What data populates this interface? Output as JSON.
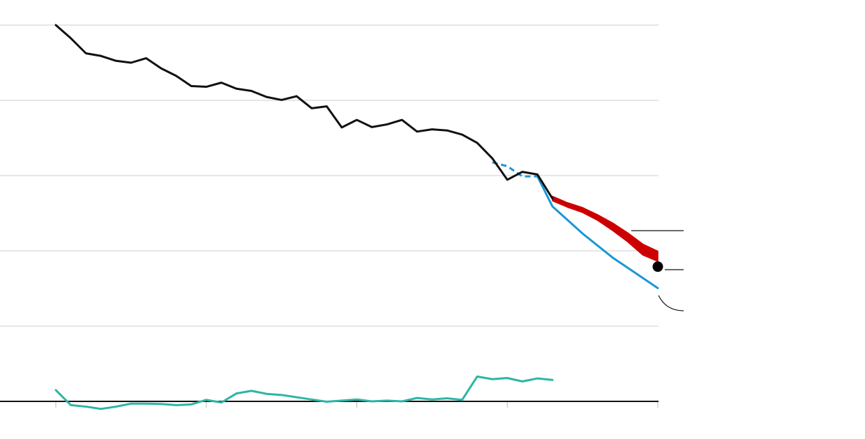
{
  "chart_data": {
    "type": "line",
    "title": "",
    "xlabel": "",
    "ylabel": "",
    "x_range": [
      1980,
      2020
    ],
    "ylim": [
      0,
      100
    ],
    "grid": true,
    "colors": {
      "historical": "#111111",
      "projection_range": "#cc0000",
      "pathway": "#1b96d8",
      "other": "#2bb5a5",
      "marker": "#000000"
    },
    "series": [
      {
        "key": "historical",
        "style": "solid",
        "points": [
          [
            1980,
            100
          ],
          [
            1981,
            96.5
          ],
          [
            1982,
            92.5
          ],
          [
            1983,
            91.8
          ],
          [
            1984,
            90.5
          ],
          [
            1985,
            90
          ],
          [
            1986,
            91.2
          ],
          [
            1987,
            88.5
          ],
          [
            1988,
            86.5
          ],
          [
            1989,
            83.8
          ],
          [
            1990,
            83.6
          ],
          [
            1991,
            84.7
          ],
          [
            1992,
            83.1
          ],
          [
            1993,
            82.5
          ],
          [
            1994,
            80.9
          ],
          [
            1995,
            80.1
          ],
          [
            1996,
            81.1
          ],
          [
            1997,
            77.9
          ],
          [
            1998,
            78.4
          ],
          [
            1999,
            72.8
          ],
          [
            2000,
            74.8
          ],
          [
            2001,
            72.9
          ],
          [
            2002,
            73.6
          ],
          [
            2003,
            74.8
          ],
          [
            2004,
            71.7
          ],
          [
            2005,
            72.3
          ],
          [
            2006,
            72
          ],
          [
            2007,
            70.9
          ],
          [
            2008,
            68.7
          ],
          [
            2009,
            64.6
          ],
          [
            2010,
            58.9
          ],
          [
            2011,
            61
          ],
          [
            2012,
            60.3
          ],
          [
            2013,
            53.9
          ]
        ]
      },
      {
        "key": "pathway-dashed",
        "style": "dashed",
        "points": [
          [
            2009,
            63.5
          ],
          [
            2010,
            62.5
          ],
          [
            2011,
            59.8
          ],
          [
            2012,
            59.8
          ]
        ]
      },
      {
        "key": "pathway",
        "style": "solid",
        "points": [
          [
            2012,
            59.8
          ],
          [
            2013,
            51.8
          ],
          [
            2015,
            44.6
          ],
          [
            2017,
            38.2
          ],
          [
            2020,
            30.1
          ]
        ]
      },
      {
        "key": "other",
        "style": "solid",
        "points": [
          [
            1980,
            3
          ],
          [
            1981,
            -1
          ],
          [
            1982,
            -1.4
          ],
          [
            1983,
            -2
          ],
          [
            1984,
            -1.4
          ],
          [
            1985,
            -0.6
          ],
          [
            1986,
            -0.6
          ],
          [
            1987,
            -0.7
          ],
          [
            1988,
            -1
          ],
          [
            1989,
            -0.8
          ],
          [
            1990,
            0.4
          ],
          [
            1991,
            -0.3
          ],
          [
            1992,
            2.1
          ],
          [
            1993,
            2.8
          ],
          [
            1994,
            2
          ],
          [
            1995,
            1.7
          ],
          [
            1996,
            1.1
          ],
          [
            1997,
            0.5
          ],
          [
            1998,
            -0.1
          ],
          [
            1999,
            0.2
          ],
          [
            2000,
            0.5
          ],
          [
            2001,
            0
          ],
          [
            2002,
            0.2
          ],
          [
            2003,
            0
          ],
          [
            2004,
            0.9
          ],
          [
            2005,
            0.5
          ],
          [
            2006,
            0.8
          ],
          [
            2007,
            0.4
          ],
          [
            2008,
            6.6
          ],
          [
            2009,
            5.9
          ],
          [
            2010,
            6.2
          ],
          [
            2011,
            5.3
          ],
          [
            2012,
            6.1
          ],
          [
            2013,
            5.7
          ]
        ]
      }
    ],
    "projection_band": {
      "key": "projection-range",
      "x": [
        2013,
        2014,
        2015,
        2016,
        2017,
        2018,
        2019,
        2020
      ],
      "upper": [
        54.5,
        52.8,
        51.5,
        49.6,
        47.4,
        44.8,
        41.8,
        39.9
      ],
      "lower": [
        53.3,
        51.6,
        50.2,
        48.1,
        45.4,
        42.4,
        38.9,
        37.2
      ]
    },
    "endpoint_marker": {
      "x": 2020,
      "y": 35.8
    },
    "annotations": {
      "upper": "",
      "middle": "",
      "lower": ""
    }
  }
}
